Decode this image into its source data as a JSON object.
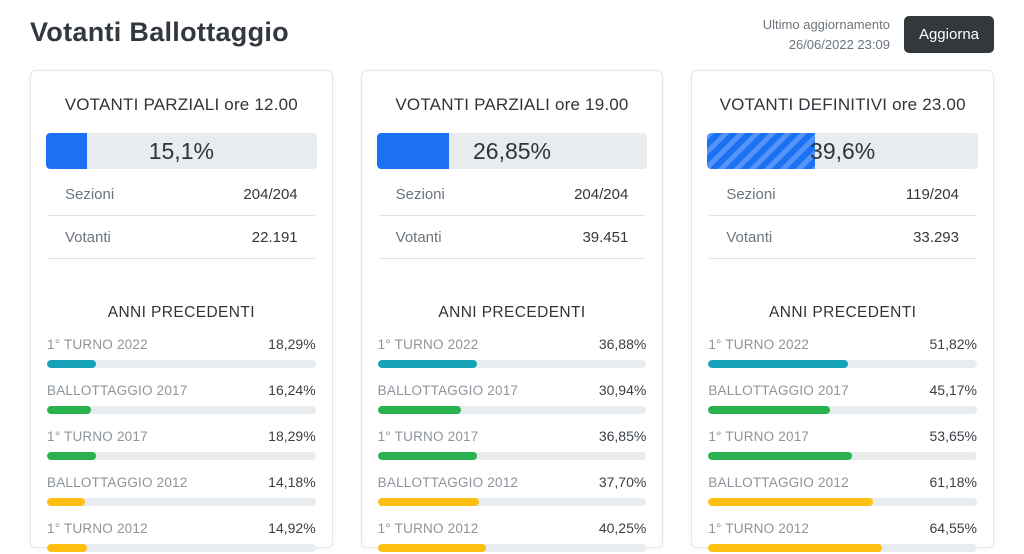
{
  "header": {
    "title": "Votanti Ballottaggio",
    "last_update_label": "Ultimo aggiornamento",
    "last_update_value": "26/06/2022 23:09",
    "refresh_button_label": "Aggiorna"
  },
  "colors": {
    "blue": "#1b70f3",
    "teal": "#16a3b8",
    "green": "#28b14c",
    "yellow": "#fdc010",
    "track": "#e9ecef",
    "dark": "#32383b"
  },
  "cards": [
    {
      "title": "VOTANTI PARZIALI ore 12.00",
      "percent": 15.1,
      "percent_label": "15,1%",
      "striped": false,
      "rows": [
        {
          "label": "Sezioni",
          "value": "204/204"
        },
        {
          "label": "Votanti",
          "value": "22.191"
        }
      ],
      "previous_years_title": "ANNI PRECEDENTI",
      "previous_years": [
        {
          "label": "1° TURNO 2022",
          "percent": 18.29,
          "percent_label": "18,29%",
          "color": "#16a3b8"
        },
        {
          "label": "BALLOTTAGGIO 2017",
          "percent": 16.24,
          "percent_label": "16,24%",
          "color": "#28b14c"
        },
        {
          "label": "1° TURNO 2017",
          "percent": 18.29,
          "percent_label": "18,29%",
          "color": "#28b14c"
        },
        {
          "label": "BALLOTTAGGIO 2012",
          "percent": 14.18,
          "percent_label": "14,18%",
          "color": "#fdc010"
        },
        {
          "label": "1° TURNO 2012",
          "percent": 14.92,
          "percent_label": "14,92%",
          "color": "#fdc010"
        }
      ]
    },
    {
      "title": "VOTANTI PARZIALI ore 19.00",
      "percent": 26.85,
      "percent_label": "26,85%",
      "striped": false,
      "rows": [
        {
          "label": "Sezioni",
          "value": "204/204"
        },
        {
          "label": "Votanti",
          "value": "39.451"
        }
      ],
      "previous_years_title": "ANNI PRECEDENTI",
      "previous_years": [
        {
          "label": "1° TURNO 2022",
          "percent": 36.88,
          "percent_label": "36,88%",
          "color": "#16a3b8"
        },
        {
          "label": "BALLOTTAGGIO 2017",
          "percent": 30.94,
          "percent_label": "30,94%",
          "color": "#28b14c"
        },
        {
          "label": "1° TURNO 2017",
          "percent": 36.85,
          "percent_label": "36,85%",
          "color": "#28b14c"
        },
        {
          "label": "BALLOTTAGGIO 2012",
          "percent": 37.7,
          "percent_label": "37,70%",
          "color": "#fdc010"
        },
        {
          "label": "1° TURNO 2012",
          "percent": 40.25,
          "percent_label": "40,25%",
          "color": "#fdc010"
        }
      ]
    },
    {
      "title": "VOTANTI DEFINITIVI ore 23.00",
      "percent": 39.6,
      "percent_label": "39,6%",
      "striped": true,
      "rows": [
        {
          "label": "Sezioni",
          "value": "119/204"
        },
        {
          "label": "Votanti",
          "value": "33.293"
        }
      ],
      "previous_years_title": "ANNI PRECEDENTI",
      "previous_years": [
        {
          "label": "1° TURNO 2022",
          "percent": 51.82,
          "percent_label": "51,82%",
          "color": "#16a3b8"
        },
        {
          "label": "BALLOTTAGGIO 2017",
          "percent": 45.17,
          "percent_label": "45,17%",
          "color": "#28b14c"
        },
        {
          "label": "1° TURNO 2017",
          "percent": 53.65,
          "percent_label": "53,65%",
          "color": "#28b14c"
        },
        {
          "label": "BALLOTTAGGIO 2012",
          "percent": 61.18,
          "percent_label": "61,18%",
          "color": "#fdc010"
        },
        {
          "label": "1° TURNO 2012",
          "percent": 64.55,
          "percent_label": "64,55%",
          "color": "#fdc010"
        }
      ]
    }
  ]
}
